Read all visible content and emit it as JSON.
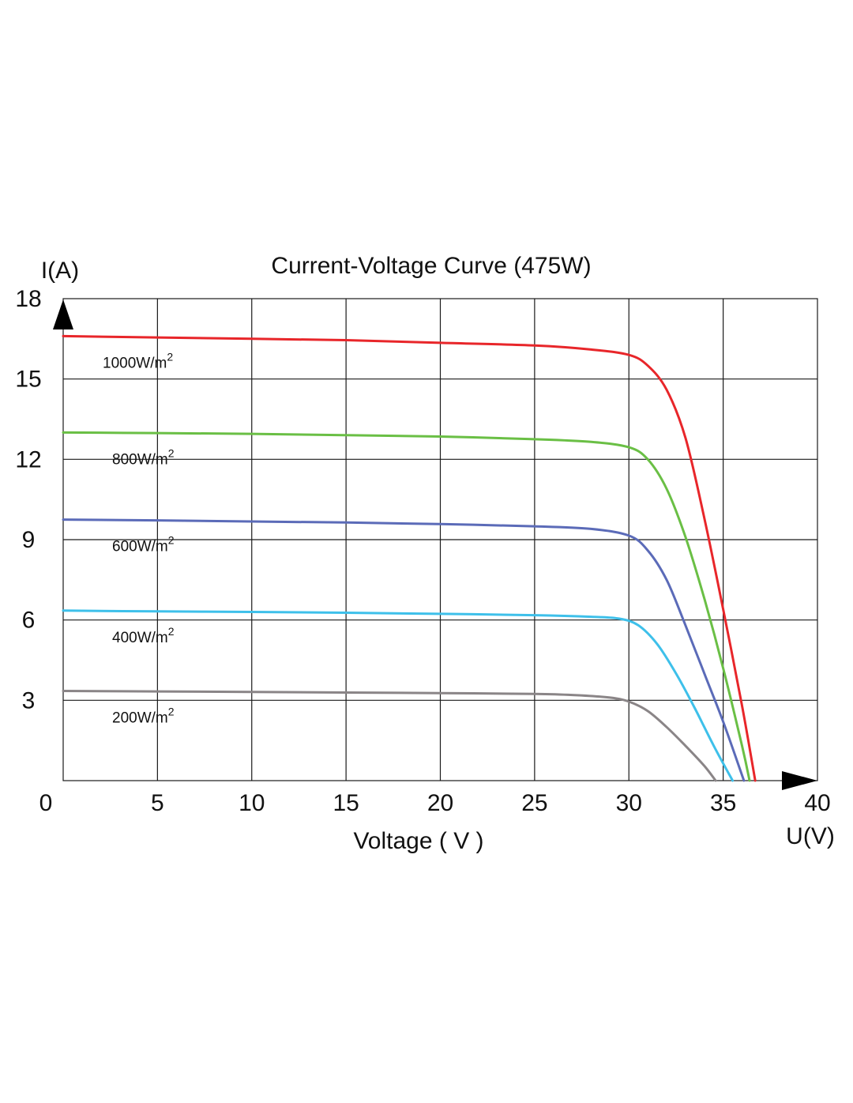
{
  "chart_data": {
    "type": "line",
    "title": "Current-Voltage  Curve (475W)",
    "xlabel": "Voltage ( V )",
    "xunit_label": "U(V)",
    "ylabel": "I(A)",
    "xlim": [
      0,
      40
    ],
    "ylim": [
      0,
      18
    ],
    "xticks": [
      0,
      5,
      10,
      15,
      20,
      25,
      30,
      35,
      40
    ],
    "yticks": [
      3,
      6,
      9,
      12,
      15,
      18
    ],
    "grid": true,
    "series": [
      {
        "name": "1000W/m",
        "superscript": "2",
        "color": "#e8262a",
        "x": [
          0,
          5,
          10,
          15,
          20,
          25,
          28,
          30,
          31,
          32,
          33,
          34,
          35,
          36,
          36.7
        ],
        "y": [
          16.6,
          16.55,
          16.5,
          16.45,
          16.35,
          16.25,
          16.1,
          15.9,
          15.5,
          14.6,
          12.8,
          9.8,
          6.4,
          2.8,
          0
        ]
      },
      {
        "name": "800W/m",
        "superscript": "2",
        "color": "#6abf45",
        "x": [
          0,
          5,
          10,
          15,
          20,
          25,
          28,
          30,
          31,
          32,
          33,
          34,
          35,
          36,
          36.4
        ],
        "y": [
          13.0,
          12.98,
          12.95,
          12.9,
          12.85,
          12.75,
          12.65,
          12.45,
          12.0,
          10.9,
          9.1,
          6.8,
          4.2,
          1.3,
          0
        ]
      },
      {
        "name": "600W/m",
        "superscript": "2",
        "color": "#5b6bb8",
        "x": [
          0,
          5,
          10,
          15,
          20,
          25,
          28,
          30,
          31,
          32,
          33,
          34,
          35,
          36.1
        ],
        "y": [
          9.75,
          9.72,
          9.68,
          9.64,
          9.58,
          9.5,
          9.4,
          9.15,
          8.6,
          7.5,
          5.8,
          4.0,
          2.2,
          0
        ]
      },
      {
        "name": "400W/m",
        "superscript": "2",
        "color": "#3ec0ea",
        "x": [
          0,
          5,
          10,
          15,
          20,
          25,
          28,
          29.5,
          30.5,
          31.5,
          32.5,
          33.5,
          34.5,
          35.5
        ],
        "y": [
          6.35,
          6.32,
          6.3,
          6.27,
          6.23,
          6.18,
          6.12,
          6.05,
          5.8,
          5.1,
          4.0,
          2.7,
          1.3,
          0
        ]
      },
      {
        "name": "200W/m",
        "superscript": "2",
        "color": "#8a8587",
        "x": [
          0,
          5,
          10,
          15,
          20,
          25,
          27,
          29,
          30,
          31,
          32,
          33,
          34,
          34.6
        ],
        "y": [
          3.35,
          3.33,
          3.31,
          3.29,
          3.27,
          3.24,
          3.2,
          3.1,
          2.95,
          2.6,
          2.0,
          1.3,
          0.55,
          0
        ]
      }
    ]
  }
}
